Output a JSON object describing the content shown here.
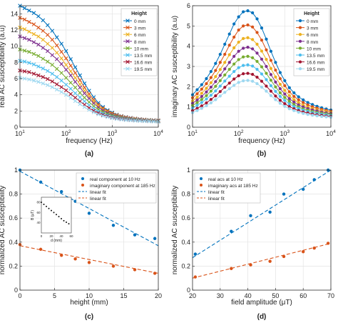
{
  "chart_data": [
    {
      "panel": "(a)",
      "type": "line",
      "xlabel": "frequency (Hz)",
      "ylabel": "real AC susceptibility (a.u)",
      "xscale": "log",
      "xlim": [
        10,
        10000
      ],
      "ylim": [
        0,
        15
      ],
      "xticks": [
        10,
        100,
        1000,
        10000
      ],
      "xtick_labels": [
        [
          "10",
          "1"
        ],
        [
          "10",
          "2"
        ],
        [
          "10",
          "3"
        ],
        [
          "10",
          "4"
        ]
      ],
      "yticks": [
        0,
        2,
        4,
        6,
        8,
        10,
        12,
        14
      ],
      "grid": true,
      "legend": {
        "title": "Height",
        "position": "top-right"
      },
      "x": [
        10,
        12.6,
        15.8,
        20,
        25.1,
        31.6,
        39.8,
        50.1,
        63.1,
        79.4,
        100,
        126,
        158,
        200,
        251,
        316,
        398,
        501,
        631,
        794,
        1000,
        1259,
        1585,
        1995,
        2512,
        3162,
        3981,
        5012,
        6310,
        7943,
        10000
      ],
      "series": [
        {
          "name": "0 mm",
          "color": "#0072BD",
          "marker": "x",
          "values": [
            15,
            14.7,
            14.4,
            14.1,
            13.7,
            13.2,
            12.6,
            11.9,
            11.1,
            10.3,
            9.4,
            8.4,
            7.4,
            6.4,
            5.4,
            4.5,
            3.7,
            3.0,
            2.5,
            2.1,
            1.8,
            1.55,
            1.38,
            1.25,
            1.15,
            1.07,
            1.0,
            0.95,
            0.9,
            0.87,
            0.84
          ]
        },
        {
          "name": "3 mm",
          "color": "#D95319",
          "marker": "x",
          "values": [
            13.5,
            13.3,
            13.0,
            12.7,
            12.3,
            11.9,
            11.4,
            10.8,
            10.1,
            9.3,
            8.5,
            7.6,
            6.7,
            5.8,
            4.9,
            4.1,
            3.4,
            2.8,
            2.35,
            2.0,
            1.72,
            1.5,
            1.34,
            1.22,
            1.12,
            1.05,
            0.98,
            0.93,
            0.88,
            0.85,
            0.82
          ]
        },
        {
          "name": "6 mm",
          "color": "#EDB120",
          "marker": "x",
          "values": [
            12.3,
            12.1,
            11.8,
            11.5,
            11.2,
            10.8,
            10.3,
            9.8,
            9.2,
            8.5,
            7.7,
            6.9,
            6.1,
            5.3,
            4.5,
            3.8,
            3.15,
            2.6,
            2.2,
            1.88,
            1.62,
            1.43,
            1.28,
            1.17,
            1.08,
            1.01,
            0.95,
            0.9,
            0.86,
            0.83,
            0.8
          ]
        },
        {
          "name": "8 mm",
          "color": "#7E2F8E",
          "marker": "x",
          "values": [
            11.2,
            11.0,
            10.8,
            10.5,
            10.2,
            9.8,
            9.4,
            8.9,
            8.4,
            7.8,
            7.1,
            6.4,
            5.6,
            4.9,
            4.2,
            3.55,
            2.95,
            2.45,
            2.08,
            1.78,
            1.55,
            1.37,
            1.23,
            1.13,
            1.05,
            0.98,
            0.93,
            0.88,
            0.84,
            0.81,
            0.78
          ]
        },
        {
          "name": "10 mm",
          "color": "#77AC30",
          "marker": "x",
          "values": [
            9.6,
            9.45,
            9.3,
            9.05,
            8.8,
            8.45,
            8.1,
            7.7,
            7.2,
            6.7,
            6.1,
            5.5,
            4.9,
            4.25,
            3.65,
            3.1,
            2.6,
            2.2,
            1.88,
            1.63,
            1.43,
            1.27,
            1.15,
            1.06,
            0.99,
            0.93,
            0.88,
            0.84,
            0.8,
            0.77,
            0.75
          ]
        },
        {
          "name": "13.5 mm",
          "color": "#4DBEEE",
          "marker": "x",
          "values": [
            8.2,
            8.1,
            7.95,
            7.75,
            7.5,
            7.25,
            6.95,
            6.6,
            6.2,
            5.75,
            5.25,
            4.75,
            4.2,
            3.7,
            3.2,
            2.72,
            2.3,
            1.95,
            1.68,
            1.47,
            1.3,
            1.17,
            1.07,
            0.99,
            0.93,
            0.88,
            0.84,
            0.8,
            0.77,
            0.74,
            0.72
          ]
        },
        {
          "name": "16.6 mm",
          "color": "#A2142F",
          "marker": "x",
          "values": [
            7.0,
            6.9,
            6.8,
            6.6,
            6.4,
            6.2,
            5.95,
            5.65,
            5.3,
            4.95,
            4.55,
            4.1,
            3.65,
            3.2,
            2.78,
            2.38,
            2.03,
            1.74,
            1.52,
            1.35,
            1.2,
            1.09,
            1.0,
            0.93,
            0.88,
            0.84,
            0.8,
            0.77,
            0.74,
            0.72,
            0.7
          ]
        },
        {
          "name": "19.5 mm",
          "color": "#9ED8F0",
          "marker": "x",
          "values": [
            6.1,
            6.0,
            5.9,
            5.75,
            5.6,
            5.4,
            5.2,
            4.95,
            4.65,
            4.35,
            4.0,
            3.62,
            3.23,
            2.85,
            2.48,
            2.14,
            1.84,
            1.59,
            1.4,
            1.25,
            1.12,
            1.02,
            0.94,
            0.88,
            0.84,
            0.8,
            0.77,
            0.74,
            0.72,
            0.7,
            0.68
          ]
        }
      ],
      "caption": "(a)"
    },
    {
      "panel": "(b)",
      "type": "line",
      "xlabel": "frequency (Hz)",
      "ylabel": "imaginary AC susceptibility (a.u)",
      "xscale": "log",
      "xlim": [
        10,
        10000
      ],
      "ylim": [
        0,
        6
      ],
      "xticks": [
        10,
        100,
        1000,
        10000
      ],
      "xtick_labels": [
        [
          "10",
          "1"
        ],
        [
          "10",
          "2"
        ],
        [
          "10",
          "3"
        ],
        [
          "10",
          "4"
        ]
      ],
      "yticks": [
        0,
        1,
        2,
        3,
        4,
        5,
        6
      ],
      "grid": true,
      "legend": {
        "title": "Height",
        "position": "top-right"
      },
      "x": [
        10,
        12.6,
        15.8,
        20,
        25.1,
        31.6,
        39.8,
        50.1,
        63.1,
        79.4,
        100,
        126,
        158,
        200,
        251,
        316,
        398,
        501,
        631,
        794,
        1000,
        1259,
        1585,
        1995,
        2512,
        3162,
        3981,
        5012,
        6310,
        7943,
        10000
      ],
      "series": [
        {
          "name": "0 mm",
          "color": "#0072BD",
          "marker": "o",
          "values": [
            1.6,
            1.85,
            2.1,
            2.4,
            2.75,
            3.15,
            3.6,
            4.1,
            4.6,
            5.1,
            5.45,
            5.7,
            5.75,
            5.65,
            5.35,
            4.9,
            4.35,
            3.75,
            3.2,
            2.7,
            2.3,
            1.95,
            1.7,
            1.5,
            1.35,
            1.22,
            1.12,
            1.03,
            0.96,
            0.9,
            0.85
          ]
        },
        {
          "name": "3 mm",
          "color": "#D95319",
          "marker": "o",
          "values": [
            1.45,
            1.65,
            1.88,
            2.15,
            2.45,
            2.8,
            3.2,
            3.6,
            4.05,
            4.45,
            4.8,
            5.0,
            5.05,
            4.95,
            4.68,
            4.3,
            3.82,
            3.3,
            2.82,
            2.4,
            2.05,
            1.75,
            1.52,
            1.35,
            1.22,
            1.1,
            1.01,
            0.94,
            0.88,
            0.83,
            0.79
          ]
        },
        {
          "name": "6 mm",
          "color": "#EDB120",
          "marker": "o",
          "values": [
            1.3,
            1.48,
            1.68,
            1.92,
            2.2,
            2.5,
            2.85,
            3.2,
            3.58,
            3.92,
            4.2,
            4.38,
            4.42,
            4.33,
            4.1,
            3.76,
            3.35,
            2.9,
            2.48,
            2.12,
            1.82,
            1.56,
            1.36,
            1.21,
            1.09,
            0.99,
            0.92,
            0.86,
            0.81,
            0.77,
            0.73
          ]
        },
        {
          "name": "8 mm",
          "color": "#7E2F8E",
          "marker": "o",
          "values": [
            1.18,
            1.34,
            1.52,
            1.74,
            1.98,
            2.25,
            2.56,
            2.88,
            3.2,
            3.5,
            3.75,
            3.9,
            3.95,
            3.87,
            3.66,
            3.36,
            3.0,
            2.6,
            2.23,
            1.9,
            1.64,
            1.41,
            1.24,
            1.1,
            1.0,
            0.92,
            0.85,
            0.8,
            0.75,
            0.71,
            0.68
          ]
        },
        {
          "name": "10 mm",
          "color": "#77AC30",
          "marker": "o",
          "values": [
            1.07,
            1.21,
            1.37,
            1.56,
            1.78,
            2.02,
            2.3,
            2.58,
            2.86,
            3.12,
            3.34,
            3.47,
            3.5,
            3.43,
            3.25,
            2.98,
            2.66,
            2.32,
            1.99,
            1.7,
            1.47,
            1.28,
            1.12,
            1.0,
            0.91,
            0.84,
            0.78,
            0.73,
            0.69,
            0.66,
            0.63
          ]
        },
        {
          "name": "13.5 mm",
          "color": "#4DBEEE",
          "marker": "o",
          "values": [
            0.95,
            1.08,
            1.22,
            1.39,
            1.58,
            1.79,
            2.03,
            2.28,
            2.52,
            2.75,
            2.94,
            3.05,
            3.08,
            3.02,
            2.86,
            2.63,
            2.35,
            2.05,
            1.77,
            1.52,
            1.32,
            1.15,
            1.02,
            0.92,
            0.84,
            0.77,
            0.72,
            0.68,
            0.64,
            0.61,
            0.58
          ]
        },
        {
          "name": "16.6 mm",
          "color": "#A2142F",
          "marker": "o",
          "values": [
            0.82,
            0.93,
            1.05,
            1.2,
            1.37,
            1.55,
            1.76,
            1.97,
            2.18,
            2.38,
            2.54,
            2.64,
            2.66,
            2.61,
            2.47,
            2.27,
            2.03,
            1.78,
            1.54,
            1.33,
            1.16,
            1.02,
            0.91,
            0.82,
            0.75,
            0.7,
            0.65,
            0.61,
            0.58,
            0.55,
            0.53
          ]
        },
        {
          "name": "19.5 mm",
          "color": "#9ED8F0",
          "marker": "o",
          "values": [
            0.72,
            0.82,
            0.93,
            1.06,
            1.2,
            1.36,
            1.54,
            1.72,
            1.9,
            2.07,
            2.21,
            2.29,
            2.31,
            2.27,
            2.15,
            1.98,
            1.78,
            1.56,
            1.36,
            1.18,
            1.03,
            0.91,
            0.82,
            0.74,
            0.68,
            0.63,
            0.59,
            0.56,
            0.53,
            0.51,
            0.49
          ]
        }
      ],
      "caption": "(b)"
    },
    {
      "panel": "(c)",
      "type": "scatter",
      "xlabel": "height (mm)",
      "ylabel": "normalized AC susceptibility",
      "xlim": [
        0,
        20
      ],
      "ylim": [
        0,
        1
      ],
      "xticks": [
        0,
        5,
        10,
        15,
        20
      ],
      "yticks": [
        0,
        0.2,
        0.4,
        0.6,
        0.8,
        1
      ],
      "grid": true,
      "legend": {
        "position": "top-right"
      },
      "series": [
        {
          "name": "real component at 10 Hz",
          "color": "#0072BD",
          "kind": "points",
          "x": [
            0,
            3,
            6,
            8,
            10,
            13.5,
            16.6,
            19.5
          ],
          "y": [
            1.0,
            0.9,
            0.82,
            0.74,
            0.64,
            0.54,
            0.46,
            0.43
          ]
        },
        {
          "name": "imaginary component at 185 Hz",
          "color": "#D95319",
          "kind": "points",
          "x": [
            0,
            3,
            6,
            8,
            10,
            13.5,
            16.6,
            19.5
          ],
          "y": [
            0.38,
            0.34,
            0.29,
            0.26,
            0.23,
            0.2,
            0.17,
            0.14
          ]
        },
        {
          "name": "linear fit",
          "color": "#0072BD",
          "kind": "dashed",
          "x": [
            0,
            20
          ],
          "y": [
            0.99,
            0.37
          ]
        },
        {
          "name": "linear fit",
          "color": "#D95319",
          "kind": "dashed",
          "x": [
            0,
            20
          ],
          "y": [
            0.37,
            0.14
          ]
        }
      ],
      "inset": {
        "xlabel": "d (mm)",
        "ylabel": "B (μT)",
        "xlim": [
          0,
          60
        ],
        "ylim": [
          20,
          90
        ],
        "xticks": [
          0,
          20,
          40,
          60
        ],
        "yticks": [
          40,
          60,
          80
        ],
        "x": [
          0,
          5,
          10,
          15,
          20,
          25,
          30,
          35,
          40,
          45,
          50,
          55
        ],
        "y": [
          80,
          76,
          72,
          68,
          64,
          60,
          56,
          52,
          48,
          44,
          41,
          38
        ]
      },
      "caption": "(c)"
    },
    {
      "panel": "(d)",
      "type": "scatter",
      "xlabel": "field amplitude (μT)",
      "ylabel": "normalized AC susceptibility",
      "xlim": [
        20,
        70
      ],
      "ylim": [
        0,
        1
      ],
      "xticks": [
        20,
        30,
        40,
        50,
        60,
        70
      ],
      "yticks": [
        0,
        0.2,
        0.4,
        0.6,
        0.8,
        1
      ],
      "grid": true,
      "legend": {
        "position": "top-left"
      },
      "series": [
        {
          "name": "real acs at 10 Hz",
          "color": "#0072BD",
          "kind": "points",
          "x": [
            21,
            34,
            41,
            48,
            53,
            60,
            64,
            69
          ],
          "y": [
            0.3,
            0.49,
            0.62,
            0.65,
            0.8,
            0.84,
            0.92,
            1.0
          ]
        },
        {
          "name": "imaginary acs at 185 Hz",
          "color": "#D95319",
          "kind": "points",
          "x": [
            21,
            34,
            41,
            48,
            53,
            60,
            64,
            69
          ],
          "y": [
            0.11,
            0.18,
            0.21,
            0.24,
            0.28,
            0.32,
            0.35,
            0.39
          ]
        },
        {
          "name": "linear fit",
          "color": "#0072BD",
          "kind": "dashed",
          "x": [
            20,
            70
          ],
          "y": [
            0.27,
            1.0
          ]
        },
        {
          "name": "linear fit",
          "color": "#D95319",
          "kind": "dashed",
          "x": [
            20,
            70
          ],
          "y": [
            0.1,
            0.39
          ]
        }
      ],
      "caption": "(d)"
    }
  ]
}
